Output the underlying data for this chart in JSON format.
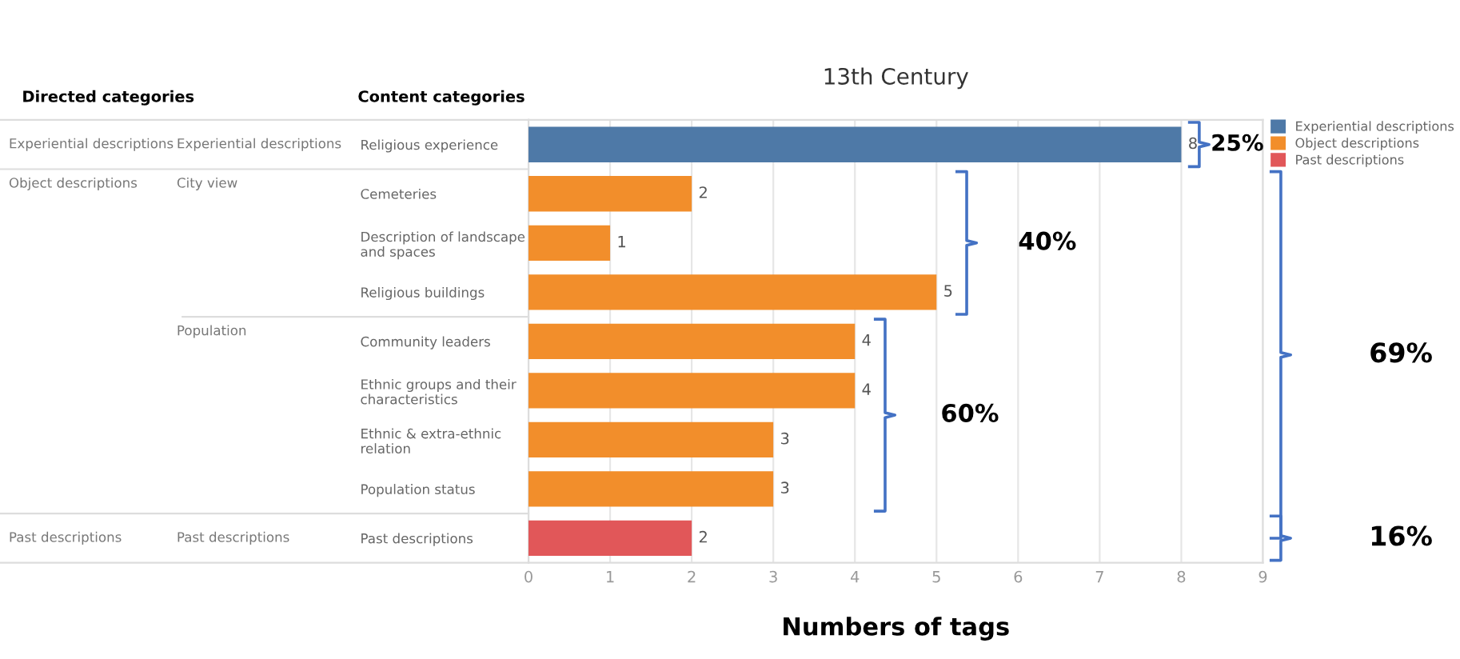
{
  "chart_data": {
    "type": "bar",
    "orientation": "horizontal",
    "title": "13th Century",
    "xlabel": "Numbers of tags",
    "categories": [
      "Religious experience",
      "Cemeteries",
      "Description of landscape\nand spaces",
      "Religious buildings",
      "Community leaders",
      "Ethnic groups and their\ncharacteristics",
      "Ethnic & extra-ethnic\nrelation",
      "Population status",
      "Past descriptions"
    ],
    "series": [
      {
        "name": "Experiential descriptions",
        "color": "#4e79a7",
        "values": [
          8,
          null,
          null,
          null,
          null,
          null,
          null,
          null,
          null
        ]
      },
      {
        "name": "Object descriptions",
        "color": "#f28e2b",
        "values": [
          null,
          2,
          1,
          5,
          4,
          4,
          3,
          3,
          null
        ]
      },
      {
        "name": "Past descriptions",
        "color": "#e15759",
        "values": [
          null,
          null,
          null,
          null,
          null,
          null,
          null,
          null,
          2
        ]
      }
    ],
    "xlim": [
      0,
      9
    ],
    "xticks": [
      0,
      1,
      2,
      3,
      4,
      5,
      6,
      7,
      8,
      9
    ],
    "grid": "x",
    "legend": "top right",
    "data_labels": true,
    "annotations": [
      "Directed categories",
      "Content categories",
      "Experiential descriptions",
      "Object descriptions",
      "Past descriptions",
      "Experiential descriptions",
      "City view",
      "Population",
      "Past descriptions",
      "25%",
      "40%",
      "60%",
      "69%",
      "16%"
    ]
  }
}
